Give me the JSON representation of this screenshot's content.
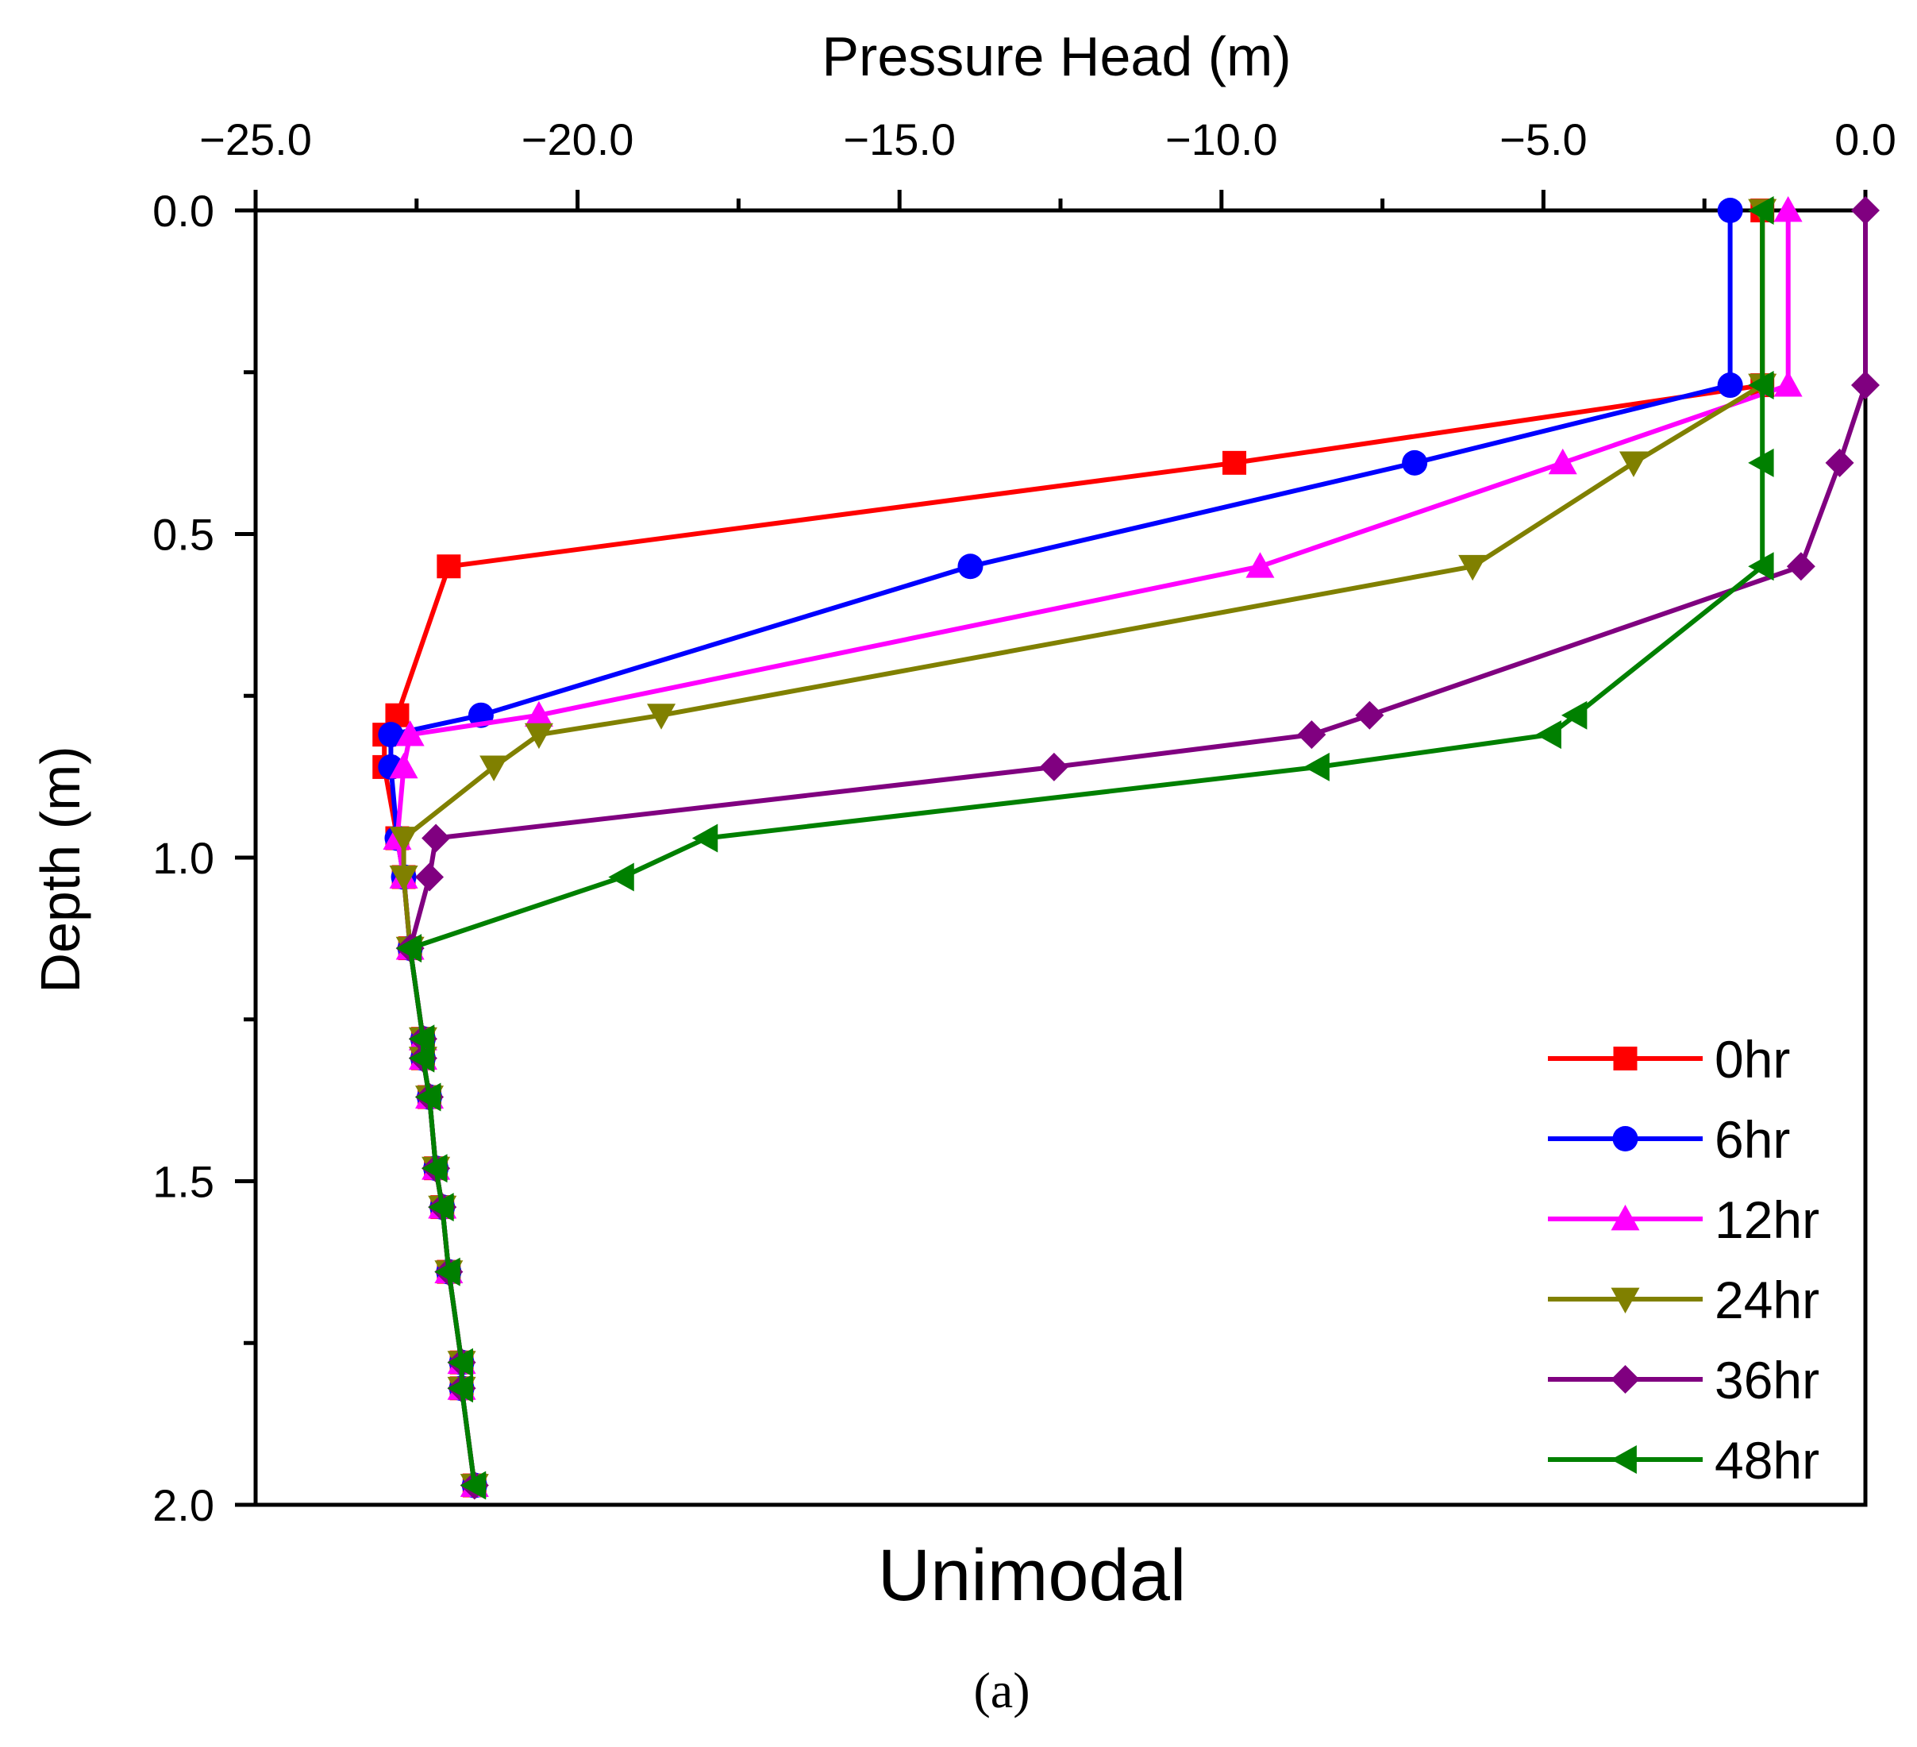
{
  "chart_data": {
    "type": "line",
    "xlabel": "Pressure Head (m)",
    "ylabel": "Depth (m)",
    "caption": "Unimodal",
    "panel_label": "(a)",
    "xlim": [
      -25.0,
      0.0
    ],
    "ylim": [
      0.0,
      2.0
    ],
    "x_axis_position": "top",
    "y_axis_inverted": true,
    "x_ticks": [
      -25.0,
      -20.0,
      -15.0,
      -10.0,
      -5.0,
      0.0
    ],
    "x_tick_labels": [
      "−25.0",
      "−20.0",
      "−15.0",
      "−10.0",
      "−5.0",
      "0.0"
    ],
    "y_ticks": [
      0.0,
      0.5,
      1.0,
      1.5,
      2.0
    ],
    "y_tick_labels": [
      "0.0",
      "0.5",
      "1.0",
      "1.5",
      "2.0"
    ],
    "legend_position": "bottom-right",
    "grid": false,
    "series": [
      {
        "name": "0hr",
        "color": "#ff0000",
        "marker": "square",
        "points": [
          [
            -1.6,
            0.0
          ],
          [
            -1.6,
            0.27
          ],
          [
            -9.8,
            0.39
          ],
          [
            -22.0,
            0.55
          ],
          [
            -22.8,
            0.78
          ],
          [
            -23.0,
            0.81
          ],
          [
            -23.0,
            0.86
          ],
          [
            -22.8,
            0.97
          ],
          [
            -22.7,
            1.03
          ],
          [
            -22.6,
            1.14
          ],
          [
            -22.4,
            1.28
          ],
          [
            -22.4,
            1.31
          ],
          [
            -22.3,
            1.37
          ],
          [
            -22.2,
            1.48
          ],
          [
            -22.1,
            1.54
          ],
          [
            -22.0,
            1.64
          ],
          [
            -21.8,
            1.78
          ],
          [
            -21.8,
            1.82
          ],
          [
            -21.6,
            1.97
          ]
        ]
      },
      {
        "name": "6hr",
        "color": "#0000ff",
        "marker": "circle",
        "points": [
          [
            -2.1,
            0.0
          ],
          [
            -2.1,
            0.27
          ],
          [
            -7.0,
            0.39
          ],
          [
            -13.9,
            0.55
          ],
          [
            -21.5,
            0.78
          ],
          [
            -22.9,
            0.81
          ],
          [
            -22.9,
            0.86
          ],
          [
            -22.8,
            0.97
          ],
          [
            -22.7,
            1.03
          ],
          [
            -22.6,
            1.14
          ],
          [
            -22.4,
            1.28
          ],
          [
            -22.4,
            1.31
          ],
          [
            -22.3,
            1.37
          ],
          [
            -22.2,
            1.48
          ],
          [
            -22.1,
            1.54
          ],
          [
            -22.0,
            1.64
          ],
          [
            -21.8,
            1.78
          ],
          [
            -21.8,
            1.82
          ],
          [
            -21.6,
            1.97
          ]
        ]
      },
      {
        "name": "12hr",
        "color": "#ff00ff",
        "marker": "triangle-up",
        "points": [
          [
            -1.2,
            0.0
          ],
          [
            -1.2,
            0.27
          ],
          [
            -4.7,
            0.39
          ],
          [
            -9.4,
            0.55
          ],
          [
            -20.6,
            0.78
          ],
          [
            -22.6,
            0.81
          ],
          [
            -22.7,
            0.86
          ],
          [
            -22.8,
            0.97
          ],
          [
            -22.7,
            1.03
          ],
          [
            -22.6,
            1.14
          ],
          [
            -22.4,
            1.28
          ],
          [
            -22.4,
            1.31
          ],
          [
            -22.3,
            1.37
          ],
          [
            -22.2,
            1.48
          ],
          [
            -22.1,
            1.54
          ],
          [
            -22.0,
            1.64
          ],
          [
            -21.8,
            1.78
          ],
          [
            -21.8,
            1.82
          ],
          [
            -21.6,
            1.97
          ]
        ]
      },
      {
        "name": "24hr",
        "color": "#808000",
        "marker": "triangle-down",
        "points": [
          [
            -1.6,
            0.0
          ],
          [
            -1.6,
            0.27
          ],
          [
            -3.6,
            0.39
          ],
          [
            -6.1,
            0.55
          ],
          [
            -18.7,
            0.78
          ],
          [
            -20.6,
            0.81
          ],
          [
            -21.3,
            0.86
          ],
          [
            -22.7,
            0.97
          ],
          [
            -22.7,
            1.03
          ],
          [
            -22.6,
            1.14
          ],
          [
            -22.4,
            1.28
          ],
          [
            -22.4,
            1.31
          ],
          [
            -22.3,
            1.37
          ],
          [
            -22.2,
            1.48
          ],
          [
            -22.1,
            1.54
          ],
          [
            -22.0,
            1.64
          ],
          [
            -21.8,
            1.78
          ],
          [
            -21.8,
            1.82
          ],
          [
            -21.6,
            1.97
          ]
        ]
      },
      {
        "name": "36hr",
        "color": "#800080",
        "marker": "diamond",
        "points": [
          [
            0.0,
            0.0
          ],
          [
            0.0,
            0.27
          ],
          [
            -0.4,
            0.39
          ],
          [
            -1.0,
            0.55
          ],
          [
            -7.7,
            0.78
          ],
          [
            -8.6,
            0.81
          ],
          [
            -12.6,
            0.86
          ],
          [
            -22.2,
            0.97
          ],
          [
            -22.3,
            1.03
          ],
          [
            -22.6,
            1.14
          ],
          [
            -22.4,
            1.28
          ],
          [
            -22.4,
            1.31
          ],
          [
            -22.3,
            1.37
          ],
          [
            -22.2,
            1.48
          ],
          [
            -22.1,
            1.54
          ],
          [
            -22.0,
            1.64
          ],
          [
            -21.8,
            1.78
          ],
          [
            -21.8,
            1.82
          ],
          [
            -21.6,
            1.97
          ]
        ]
      },
      {
        "name": "48hr",
        "color": "#008000",
        "marker": "triangle-left",
        "points": [
          [
            -1.6,
            0.0
          ],
          [
            -1.6,
            0.27
          ],
          [
            -1.6,
            0.39
          ],
          [
            -1.6,
            0.55
          ],
          [
            -4.5,
            0.78
          ],
          [
            -4.9,
            0.81
          ],
          [
            -8.5,
            0.86
          ],
          [
            -18.0,
            0.97
          ],
          [
            -19.3,
            1.03
          ],
          [
            -22.6,
            1.14
          ],
          [
            -22.4,
            1.28
          ],
          [
            -22.4,
            1.31
          ],
          [
            -22.3,
            1.37
          ],
          [
            -22.2,
            1.48
          ],
          [
            -22.1,
            1.54
          ],
          [
            -22.0,
            1.64
          ],
          [
            -21.8,
            1.78
          ],
          [
            -21.8,
            1.82
          ],
          [
            -21.6,
            1.97
          ]
        ]
      }
    ]
  }
}
